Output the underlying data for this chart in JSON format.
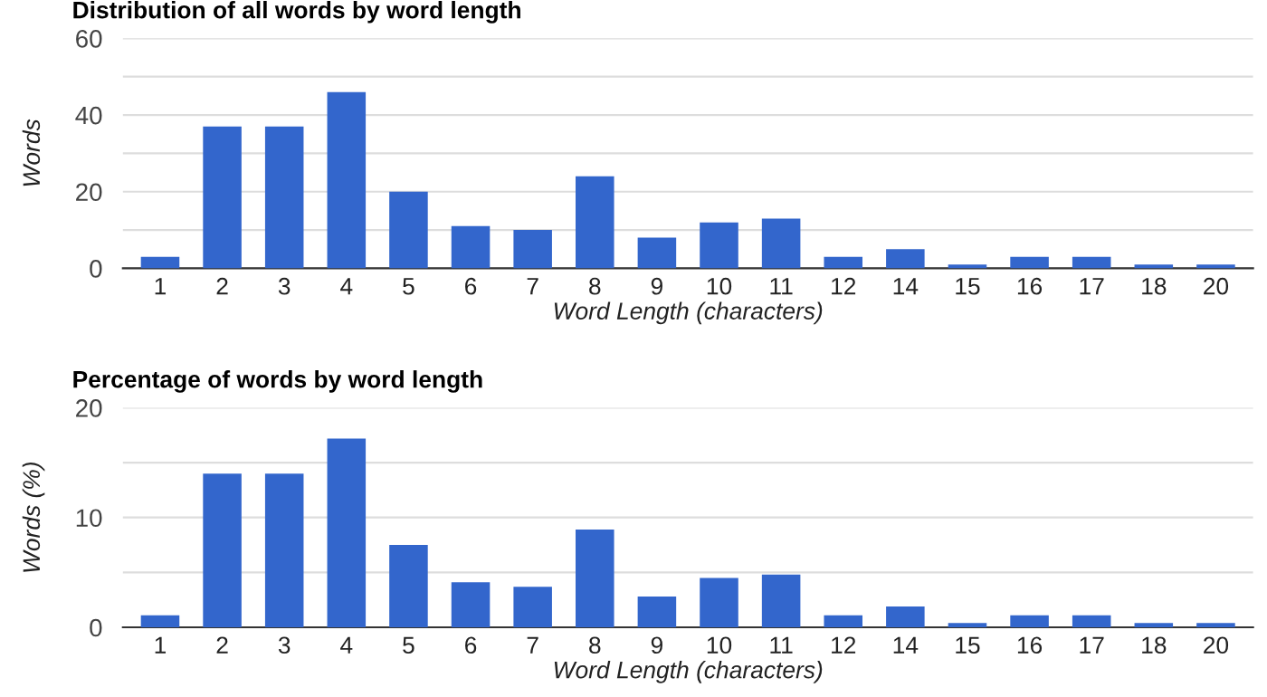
{
  "chart_data": [
    {
      "type": "bar",
      "title": "Distribution of all words by word length",
      "xlabel": "Word Length (characters)",
      "ylabel": "Words",
      "categories": [
        "1",
        "2",
        "3",
        "4",
        "5",
        "6",
        "7",
        "8",
        "9",
        "10",
        "11",
        "12",
        "14",
        "15",
        "16",
        "17",
        "18",
        "20"
      ],
      "values": [
        3,
        37,
        37,
        46,
        20,
        11,
        10,
        24,
        8,
        12,
        13,
        3,
        5,
        1,
        3,
        3,
        1,
        1
      ],
      "color": "#3366cc",
      "ylim": [
        0,
        60
      ],
      "yticks": [
        0,
        {
          "value": 10,
          "label": null
        },
        20,
        {
          "value": 30,
          "label": null
        },
        40,
        {
          "value": 50,
          "label": null
        },
        60
      ],
      "grid": "y",
      "legend": false
    },
    {
      "type": "bar",
      "title": "Percentage of words by word length",
      "xlabel": "Word Length (characters)",
      "ylabel": "Words (%)",
      "categories": [
        "1",
        "2",
        "3",
        "4",
        "5",
        "6",
        "7",
        "8",
        "9",
        "10",
        "11",
        "12",
        "14",
        "15",
        "16",
        "17",
        "18",
        "20"
      ],
      "values": [
        1.1,
        14,
        14,
        17.2,
        7.5,
        4.1,
        3.7,
        8.9,
        2.8,
        4.5,
        4.8,
        1.1,
        1.9,
        0.4,
        1.1,
        1.1,
        0.4,
        0.4
      ],
      "color": "#3366cc",
      "ylim": [
        0,
        20
      ],
      "yticks": [
        0,
        {
          "value": 5,
          "label": null
        },
        10,
        {
          "value": 15,
          "label": null
        },
        20
      ],
      "grid": "y",
      "legend": false
    }
  ]
}
